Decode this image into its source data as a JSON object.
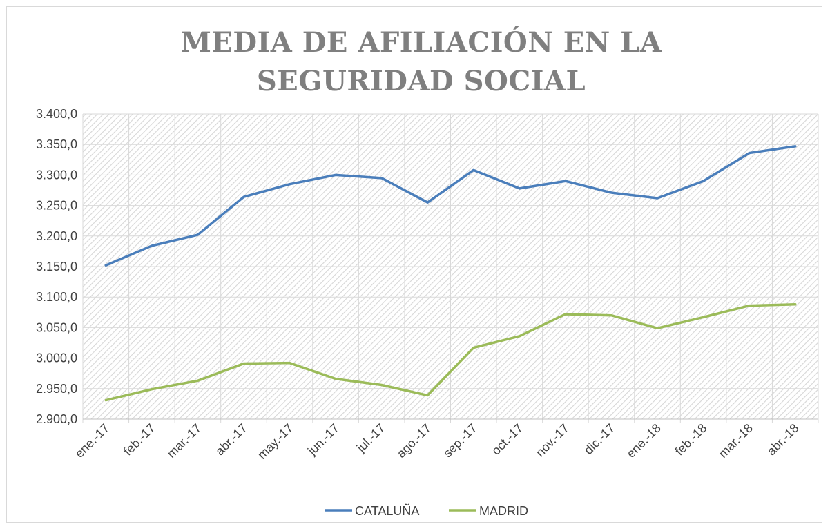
{
  "chart_data": {
    "type": "line",
    "title": "MEDIA DE AFILIACIÓN EN LA SEGURIDAD SOCIAL",
    "categories": [
      "ene.-17",
      "feb.-17",
      "mar.-17",
      "abr.-17",
      "may.-17",
      "jun.-17",
      "jul.-17",
      "ago.-17",
      "sep.-17",
      "oct.-17",
      "nov.-17",
      "dic.-17",
      "ene.-18",
      "feb.-18",
      "mar.-18",
      "abr.-18"
    ],
    "series": [
      {
        "name": "CATALUÑA",
        "color": "#4a7ebb",
        "values": [
          3152,
          3184,
          3202,
          3264,
          3285,
          3300,
          3295,
          3255,
          3308,
          3278,
          3290,
          3271,
          3262,
          3290,
          3336,
          3347
        ]
      },
      {
        "name": "MADRID",
        "color": "#9bbb59",
        "values": [
          2931,
          2949,
          2963,
          2991,
          2992,
          2966,
          2956,
          2939,
          3017,
          3036,
          3072,
          3070,
          3049,
          3067,
          3086,
          3088
        ]
      }
    ],
    "ylim": [
      2900,
      3400
    ],
    "yticks": [
      {
        "value": 2900,
        "label": "2.900,0"
      },
      {
        "value": 2950,
        "label": "2.950,0"
      },
      {
        "value": 3000,
        "label": "3.000,0"
      },
      {
        "value": 3050,
        "label": "3.050,0"
      },
      {
        "value": 3100,
        "label": "3.100,0"
      },
      {
        "value": 3150,
        "label": "3.150,0"
      },
      {
        "value": 3200,
        "label": "3.200,0"
      },
      {
        "value": 3250,
        "label": "3.250,0"
      },
      {
        "value": 3300,
        "label": "3.300,0"
      },
      {
        "value": 3350,
        "label": "3.350,0"
      },
      {
        "value": 3400,
        "label": "3.400,0"
      }
    ],
    "grid": true,
    "legend": "bottom"
  }
}
